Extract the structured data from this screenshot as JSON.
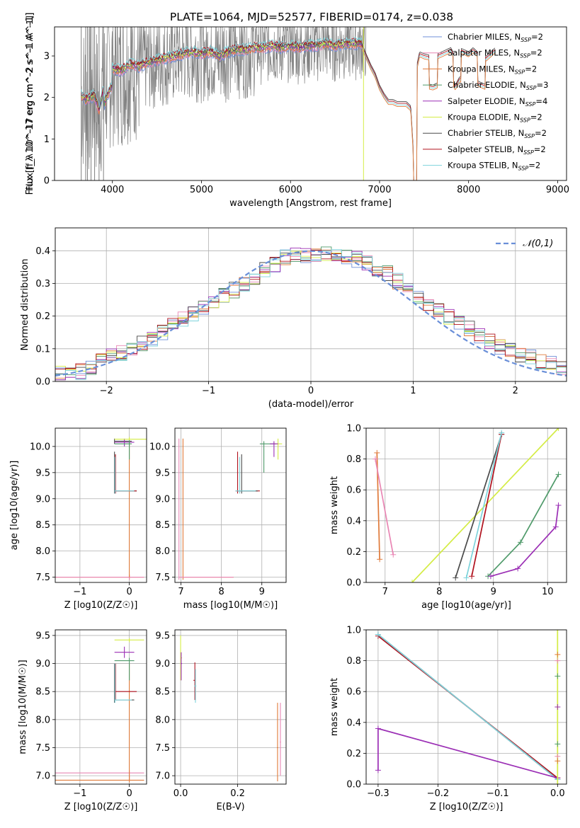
{
  "figure_title": "PLATE=1064, MJD=52577, FIBERID=0174, z=0.038",
  "colors": {
    "chabrier_miles": "#6f8fd8",
    "salpeter_miles": "#e986b4",
    "kroupa_miles": "#e07a3a",
    "chabrier_elodie": "#4f9a6a",
    "salpeter_elodie": "#9b2fb5",
    "kroupa_elodie": "#d4ec45",
    "chabrier_stelib": "#4a4a4a",
    "salpeter_stelib": "#b0111d",
    "kroupa_stelib": "#7ed3db",
    "data": "#808080",
    "normal_curve": "#6a8fd8",
    "grid": "#b0b0b0"
  },
  "chart_data": [
    {
      "id": "spectrum",
      "type": "line",
      "title": "PLATE=1064, MJD=52577, FIBERID=0174, z=0.038",
      "xlabel": "wavelength [Angstrom, rest frame]",
      "ylabel": "Flux [f_λ 10^-17 erg cm^-2 s^-1 A^-1]",
      "xlim": [
        3350,
        9100
      ],
      "ylim": [
        0,
        3.7
      ],
      "xticks": [
        4000,
        5000,
        6000,
        7000,
        8000,
        9000
      ],
      "yticks": [
        0,
        1,
        2,
        3
      ],
      "grid": false,
      "legend_position": "top-right",
      "series": [
        {
          "name": "Chabrier MILES, N_SSP=2",
          "color_key": "chabrier_miles"
        },
        {
          "name": "Salpeter MILES, N_SSP=2",
          "color_key": "salpeter_miles"
        },
        {
          "name": "Kroupa MILES, N_SSP=2",
          "color_key": "kroupa_miles"
        },
        {
          "name": "Chabrier ELODIE, N_SSP=3",
          "color_key": "chabrier_elodie"
        },
        {
          "name": "Salpeter ELODIE, N_SSP=4",
          "color_key": "salpeter_elodie"
        },
        {
          "name": "Kroupa ELODIE, N_SSP=2",
          "color_key": "kroupa_elodie"
        },
        {
          "name": "Chabrier STELIB, N_SSP=2",
          "color_key": "chabrier_stelib"
        },
        {
          "name": "Salpeter STELIB, N_SSP=2",
          "color_key": "salpeter_stelib"
        },
        {
          "name": "Kroupa STELIB, N_SSP=2",
          "color_key": "kroupa_stelib"
        }
      ],
      "model_continuum": {
        "x": [
          3650,
          3700,
          3750,
          3800,
          3850,
          3900,
          3950,
          4000,
          4100,
          4200,
          4300,
          4400,
          4500,
          4600,
          4700,
          4800,
          4900,
          5000,
          5100,
          5200,
          5300,
          5400,
          5500,
          5600,
          5700,
          5800,
          5900,
          6000,
          6100,
          6200,
          6300,
          6400,
          6500,
          6600,
          6700,
          6800
        ],
        "y": [
          2.05,
          1.95,
          2.0,
          2.05,
          1.7,
          2.2,
          2.5,
          2.7,
          2.65,
          2.8,
          2.75,
          2.85,
          2.9,
          2.95,
          3.0,
          3.05,
          3.1,
          3.05,
          3.1,
          3.0,
          3.1,
          3.15,
          3.15,
          3.2,
          3.2,
          3.25,
          3.2,
          3.25,
          3.2,
          3.25,
          3.25,
          3.3,
          3.25,
          3.3,
          3.3,
          3.3
        ]
      },
      "model_red_extension": {
        "x": [
          6800,
          6900,
          6950,
          7000,
          7050,
          7100,
          7150,
          7200,
          7300,
          7350,
          7400,
          7420,
          7450,
          7500,
          7600,
          7700,
          7800,
          7850,
          7900,
          8000,
          8050,
          8100,
          8200,
          8300
        ],
        "y": [
          3.3,
          2.8,
          2.6,
          2.3,
          2.1,
          1.95,
          1.95,
          1.9,
          1.9,
          1.8,
          0,
          2.8,
          3.1,
          3.05,
          3.0,
          3.1,
          3.2,
          3.0,
          3.2,
          3.1,
          3.2,
          3.1,
          3.0,
          3.2
        ]
      },
      "data_noise_range": {
        "x": [
          3650,
          6850
        ],
        "y": [
          0,
          3.7
        ]
      }
    },
    {
      "id": "residual_histogram",
      "type": "line",
      "xlabel": "(data-model)/error",
      "ylabel": "Normed distribution",
      "xlim": [
        -2.5,
        2.5
      ],
      "ylim": [
        0,
        0.47
      ],
      "xticks": [
        -2,
        -1,
        0,
        1,
        2
      ],
      "yticks": [
        0.0,
        0.1,
        0.2,
        0.3,
        0.4
      ],
      "grid": true,
      "legend_position": "top-right",
      "legend": [
        "𝒩(0,1)"
      ],
      "bin_width": 0.1,
      "histogram_envelope": {
        "x": [
          -2.5,
          -2.25,
          -2.0,
          -1.75,
          -1.5,
          -1.25,
          -1.0,
          -0.75,
          -0.5,
          -0.25,
          0.0,
          0.25,
          0.5,
          0.75,
          1.0,
          1.25,
          1.5,
          1.75,
          2.0,
          2.25,
          2.5
        ],
        "y": [
          0.02,
          0.03,
          0.07,
          0.1,
          0.14,
          0.19,
          0.24,
          0.28,
          0.33,
          0.38,
          0.39,
          0.39,
          0.37,
          0.33,
          0.27,
          0.22,
          0.17,
          0.12,
          0.09,
          0.06,
          0.04
        ]
      }
    },
    {
      "id": "age_vs_Z",
      "type": "scatter",
      "xlabel": "Z [log10(Z/Z☉)]",
      "ylabel": "age  [log10(age/yr)]",
      "xlim": [
        -1.5,
        0.35
      ],
      "ylim": [
        7.4,
        10.35
      ],
      "xticks": [
        -1,
        0
      ],
      "yticks": [
        7.5,
        8.0,
        8.5,
        9.0,
        9.5,
        10.0
      ],
      "grid": true
    },
    {
      "id": "age_vs_mass",
      "type": "scatter",
      "xlabel": "mass [log10(M/M☉)]",
      "xlim": [
        6.85,
        9.6
      ],
      "ylim": [
        7.4,
        10.35
      ],
      "xticks": [
        7,
        8,
        9
      ],
      "yticks": [
        7.5,
        8.0,
        8.5,
        9.0,
        9.5,
        10.0
      ],
      "grid": true
    },
    {
      "id": "massweight_vs_age",
      "type": "line",
      "xlabel": "age  [log10(age/yr)]",
      "ylabel": "mass weight",
      "xlim": [
        6.65,
        10.35
      ],
      "ylim": [
        0,
        1
      ],
      "xticks": [
        7,
        8,
        9,
        10
      ],
      "yticks": [
        0.0,
        0.2,
        0.4,
        0.6,
        0.8,
        1.0
      ],
      "grid": true,
      "series": [
        {
          "color_key": "kroupa_miles",
          "x": [
            6.85,
            6.9
          ],
          "y": [
            0.84,
            0.15
          ]
        },
        {
          "color_key": "salpeter_miles",
          "x": [
            6.82,
            7.15
          ],
          "y": [
            0.8,
            0.18
          ]
        },
        {
          "color_key": "kroupa_elodie",
          "x": [
            7.5,
            10.2
          ],
          "y": [
            0.0,
            1.0
          ]
        },
        {
          "color_key": "chabrier_stelib",
          "x": [
            8.3,
            9.15
          ],
          "y": [
            0.03,
            0.96
          ]
        },
        {
          "color_key": "salpeter_stelib",
          "x": [
            8.6,
            9.15
          ],
          "y": [
            0.04,
            0.96
          ]
        },
        {
          "color_key": "kroupa_stelib",
          "x": [
            8.5,
            9.15
          ],
          "y": [
            0.03,
            0.97
          ]
        },
        {
          "color_key": "chabrier_elodie",
          "x": [
            8.9,
            9.5,
            10.2
          ],
          "y": [
            0.04,
            0.26,
            0.7
          ]
        },
        {
          "color_key": "salpeter_elodie",
          "x": [
            8.95,
            9.45,
            10.15,
            10.2
          ],
          "y": [
            0.04,
            0.09,
            0.36,
            0.5
          ]
        }
      ]
    },
    {
      "id": "mass_vs_Z",
      "type": "scatter",
      "xlabel": "Z [log10(Z/Z☉)]",
      "ylabel": "mass [log10(M/M☉)]",
      "xlim": [
        -1.5,
        0.35
      ],
      "ylim": [
        6.85,
        9.6
      ],
      "xticks": [
        -1,
        0
      ],
      "yticks": [
        7.0,
        7.5,
        8.0,
        8.5,
        9.0,
        9.5
      ],
      "grid": true
    },
    {
      "id": "mass_vs_ebv",
      "type": "scatter",
      "xlabel": "E(B-V)",
      "xlim": [
        -0.02,
        0.37
      ],
      "ylim": [
        6.85,
        9.6
      ],
      "xticks": [
        0.0,
        0.2
      ],
      "yticks": [
        7.0,
        7.5,
        8.0,
        8.5,
        9.0,
        9.5
      ],
      "grid": true
    },
    {
      "id": "massweight_vs_Z",
      "type": "line",
      "xlabel": "Z [log10(Z/Z☉)]",
      "ylabel": "mass weight",
      "xlim": [
        -0.32,
        0.015
      ],
      "ylim": [
        0,
        1
      ],
      "xticks": [
        -0.3,
        -0.2,
        -0.1,
        0.0
      ],
      "yticks": [
        0.0,
        0.2,
        0.4,
        0.6,
        0.8,
        1.0
      ],
      "grid": true,
      "series": [
        {
          "color_key": "chabrier_stelib",
          "x": [
            -0.3,
            0.0
          ],
          "y": [
            0.97,
            0.03
          ]
        },
        {
          "color_key": "salpeter_stelib",
          "x": [
            -0.3,
            0.0
          ],
          "y": [
            0.96,
            0.04
          ]
        },
        {
          "color_key": "kroupa_stelib",
          "x": [
            -0.3,
            0.0
          ],
          "y": [
            0.97,
            0.03
          ]
        },
        {
          "color_key": "salpeter_elodie",
          "x": [
            -0.3,
            -0.3,
            0.0
          ],
          "y": [
            0.09,
            0.36,
            0.04
          ]
        },
        {
          "color_key": "kroupa_elodie",
          "x": [
            0.0,
            0.0
          ],
          "y": [
            0.0,
            1.0
          ]
        }
      ]
    }
  ]
}
